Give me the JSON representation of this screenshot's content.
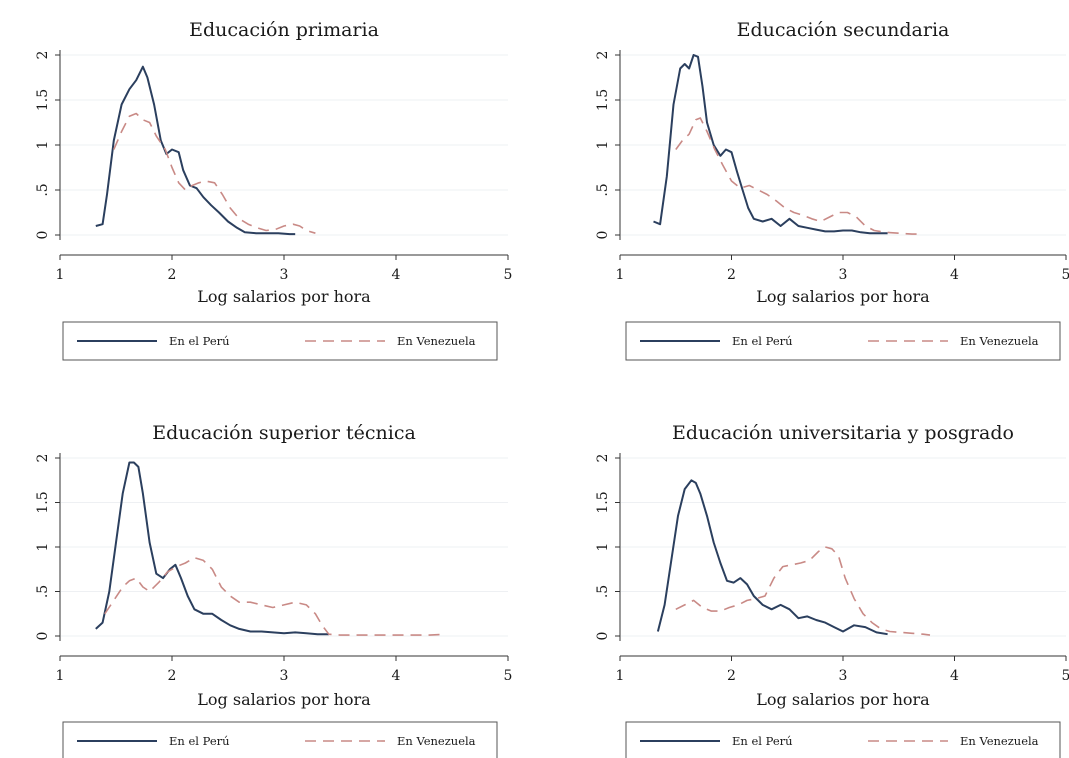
{
  "page": {
    "background": "#ffffff"
  },
  "legend": [
    {
      "name": "En el Perú",
      "color": "#2b3f5e",
      "style": "solid"
    },
    {
      "name": "En Venezuela",
      "color": "#c98a86",
      "style": "dashed"
    }
  ],
  "chart_data": [
    {
      "type": "line",
      "title": "Educación primaria",
      "xlabel": "Log salarios por hora",
      "ylabel": "",
      "xlim": [
        1,
        5
      ],
      "ylim": [
        0,
        2
      ],
      "xticks": [
        "1",
        "2",
        "3",
        "4",
        "5"
      ],
      "yticks": [
        "0",
        ".5",
        "1",
        "1.5",
        "2"
      ],
      "grid": true,
      "legend_position": "bottom",
      "series": [
        {
          "name": "En el Perú",
          "x": [
            1.32,
            1.38,
            1.42,
            1.48,
            1.55,
            1.62,
            1.68,
            1.74,
            1.78,
            1.84,
            1.9,
            1.95,
            2.0,
            2.06,
            2.1,
            2.16,
            2.22,
            2.28,
            2.35,
            2.42,
            2.5,
            2.58,
            2.65,
            2.75,
            2.85,
            2.95,
            3.05,
            3.1
          ],
          "y": [
            0.1,
            0.12,
            0.45,
            1.05,
            1.45,
            1.62,
            1.72,
            1.87,
            1.75,
            1.45,
            1.05,
            0.9,
            0.95,
            0.92,
            0.72,
            0.55,
            0.52,
            0.42,
            0.33,
            0.25,
            0.15,
            0.08,
            0.03,
            0.02,
            0.02,
            0.02,
            0.01,
            0.01
          ]
        },
        {
          "name": "En Venezuela",
          "x": [
            1.48,
            1.55,
            1.62,
            1.68,
            1.74,
            1.8,
            1.86,
            1.94,
            2.0,
            2.06,
            2.12,
            2.18,
            2.24,
            2.3,
            2.38,
            2.45,
            2.52,
            2.6,
            2.68,
            2.76,
            2.84,
            2.92,
            3.0,
            3.08,
            3.14,
            3.2,
            3.28
          ],
          "y": [
            0.95,
            1.15,
            1.32,
            1.35,
            1.28,
            1.25,
            1.1,
            0.95,
            0.75,
            0.58,
            0.5,
            0.55,
            0.58,
            0.6,
            0.58,
            0.45,
            0.3,
            0.18,
            0.12,
            0.08,
            0.05,
            0.06,
            0.1,
            0.12,
            0.1,
            0.05,
            0.02
          ]
        }
      ]
    },
    {
      "type": "line",
      "title": "Educación secundaria",
      "xlabel": "Log salarios por hora",
      "ylabel": "",
      "xlim": [
        1,
        5
      ],
      "ylim": [
        0,
        2
      ],
      "xticks": [
        "1",
        "2",
        "3",
        "4",
        "5"
      ],
      "yticks": [
        "0",
        ".5",
        "1",
        "1.5",
        "2"
      ],
      "grid": true,
      "legend_position": "bottom",
      "series": [
        {
          "name": "En el Perú",
          "x": [
            1.3,
            1.36,
            1.42,
            1.48,
            1.54,
            1.58,
            1.62,
            1.66,
            1.7,
            1.74,
            1.78,
            1.84,
            1.9,
            1.95,
            2.0,
            2.05,
            2.1,
            2.15,
            2.2,
            2.28,
            2.36,
            2.44,
            2.52,
            2.6,
            2.68,
            2.76,
            2.84,
            2.92,
            3.0,
            3.08,
            3.16,
            3.24,
            3.32,
            3.4
          ],
          "y": [
            0.15,
            0.12,
            0.65,
            1.45,
            1.85,
            1.9,
            1.85,
            2.0,
            1.98,
            1.65,
            1.25,
            1.0,
            0.88,
            0.95,
            0.92,
            0.7,
            0.5,
            0.3,
            0.18,
            0.15,
            0.18,
            0.1,
            0.18,
            0.1,
            0.08,
            0.06,
            0.04,
            0.04,
            0.05,
            0.05,
            0.03,
            0.02,
            0.02,
            0.02
          ]
        },
        {
          "name": "En Venezuela",
          "x": [
            1.5,
            1.56,
            1.62,
            1.68,
            1.72,
            1.78,
            1.85,
            1.92,
            2.0,
            2.08,
            2.16,
            2.24,
            2.32,
            2.4,
            2.48,
            2.56,
            2.64,
            2.72,
            2.8,
            2.88,
            2.96,
            3.04,
            3.12,
            3.2,
            3.28,
            3.38,
            3.5,
            3.62,
            3.68
          ],
          "y": [
            0.95,
            1.05,
            1.12,
            1.28,
            1.3,
            1.15,
            0.95,
            0.78,
            0.6,
            0.52,
            0.55,
            0.5,
            0.45,
            0.38,
            0.3,
            0.25,
            0.22,
            0.18,
            0.15,
            0.2,
            0.25,
            0.25,
            0.2,
            0.1,
            0.05,
            0.03,
            0.02,
            0.01,
            0.01
          ]
        }
      ]
    },
    {
      "type": "line",
      "title": "Educación superior técnica",
      "xlabel": "Log salarios por hora",
      "ylabel": "",
      "xlim": [
        1,
        5
      ],
      "ylim": [
        0,
        2
      ],
      "xticks": [
        "1",
        "2",
        "3",
        "4",
        "5"
      ],
      "yticks": [
        "0",
        ".5",
        "1",
        "1.5",
        "2"
      ],
      "grid": true,
      "legend_position": "bottom",
      "series": [
        {
          "name": "En el Perú",
          "x": [
            1.32,
            1.38,
            1.44,
            1.5,
            1.56,
            1.62,
            1.66,
            1.7,
            1.74,
            1.8,
            1.86,
            1.92,
            1.98,
            2.03,
            2.08,
            2.14,
            2.2,
            2.28,
            2.36,
            2.44,
            2.52,
            2.6,
            2.7,
            2.8,
            2.9,
            3.0,
            3.1,
            3.2,
            3.3,
            3.4
          ],
          "y": [
            0.08,
            0.15,
            0.5,
            1.05,
            1.6,
            1.95,
            1.95,
            1.9,
            1.6,
            1.05,
            0.7,
            0.65,
            0.75,
            0.8,
            0.65,
            0.45,
            0.3,
            0.25,
            0.25,
            0.18,
            0.12,
            0.08,
            0.05,
            0.05,
            0.04,
            0.03,
            0.04,
            0.03,
            0.02,
            0.02
          ]
        },
        {
          "name": "En Venezuela",
          "x": [
            1.4,
            1.48,
            1.56,
            1.62,
            1.68,
            1.74,
            1.8,
            1.88,
            1.96,
            2.04,
            2.12,
            2.2,
            2.28,
            2.36,
            2.44,
            2.52,
            2.6,
            2.7,
            2.8,
            2.9,
            3.0,
            3.1,
            3.2,
            3.28,
            3.34,
            3.4,
            3.5,
            3.7,
            3.9,
            4.1,
            4.3,
            4.45
          ],
          "y": [
            0.25,
            0.4,
            0.55,
            0.62,
            0.65,
            0.55,
            0.5,
            0.6,
            0.72,
            0.78,
            0.82,
            0.88,
            0.85,
            0.75,
            0.55,
            0.45,
            0.38,
            0.38,
            0.35,
            0.32,
            0.35,
            0.38,
            0.35,
            0.25,
            0.12,
            0.02,
            0.01,
            0.01,
            0.01,
            0.01,
            0.01,
            0.02
          ]
        }
      ]
    },
    {
      "type": "line",
      "title": "Educación universitaria y posgrado",
      "xlabel": "Log salarios por hora",
      "ylabel": "",
      "xlim": [
        1,
        5
      ],
      "ylim": [
        0,
        2
      ],
      "xticks": [
        "1",
        "2",
        "3",
        "4",
        "5"
      ],
      "yticks": [
        "0",
        ".5",
        "1",
        "1.5",
        "2"
      ],
      "grid": true,
      "legend_position": "bottom",
      "series": [
        {
          "name": "En el Perú",
          "x": [
            1.34,
            1.4,
            1.46,
            1.52,
            1.58,
            1.64,
            1.68,
            1.72,
            1.78,
            1.84,
            1.9,
            1.96,
            2.02,
            2.08,
            2.14,
            2.2,
            2.28,
            2.36,
            2.44,
            2.52,
            2.6,
            2.68,
            2.76,
            2.84,
            2.92,
            3.0,
            3.1,
            3.2,
            3.3,
            3.4
          ],
          "y": [
            0.05,
            0.35,
            0.85,
            1.35,
            1.65,
            1.75,
            1.72,
            1.6,
            1.35,
            1.05,
            0.82,
            0.62,
            0.6,
            0.65,
            0.58,
            0.45,
            0.35,
            0.3,
            0.35,
            0.3,
            0.2,
            0.22,
            0.18,
            0.15,
            0.1,
            0.05,
            0.12,
            0.1,
            0.04,
            0.02
          ]
        },
        {
          "name": "En Venezuela",
          "x": [
            1.5,
            1.58,
            1.66,
            1.74,
            1.82,
            1.9,
            1.98,
            2.06,
            2.14,
            2.22,
            2.3,
            2.38,
            2.46,
            2.54,
            2.62,
            2.7,
            2.78,
            2.84,
            2.9,
            2.96,
            3.02,
            3.1,
            3.18,
            3.26,
            3.34,
            3.42,
            3.52,
            3.62,
            3.72,
            3.78
          ],
          "y": [
            0.3,
            0.35,
            0.4,
            0.32,
            0.28,
            0.28,
            0.32,
            0.35,
            0.4,
            0.42,
            0.45,
            0.65,
            0.78,
            0.8,
            0.82,
            0.85,
            0.95,
            1.0,
            0.98,
            0.9,
            0.65,
            0.42,
            0.25,
            0.15,
            0.08,
            0.05,
            0.04,
            0.03,
            0.02,
            0.01
          ]
        }
      ]
    }
  ]
}
